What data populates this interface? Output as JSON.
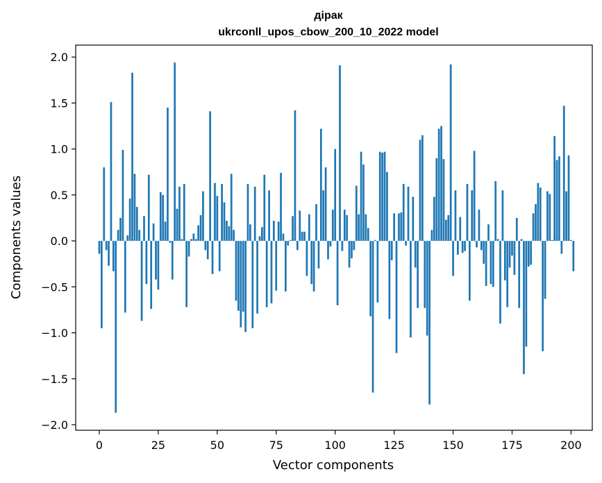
{
  "chart_data": {
    "type": "bar",
    "title_line1": "дірак",
    "title_line2": "ukrconll_upos_cbow_200_10_2022 model",
    "xlabel": "Vector components",
    "ylabel": "Components values",
    "xlim": [
      -10,
      209
    ],
    "ylim": [
      -2.06,
      2.13
    ],
    "xticks": [
      0,
      25,
      50,
      75,
      100,
      125,
      150,
      175,
      200
    ],
    "yticks": [
      -2.0,
      -1.5,
      -1.0,
      -0.5,
      0.0,
      0.5,
      1.0,
      1.5,
      2.0
    ],
    "ytick_labels": [
      "−2.0",
      "−1.5",
      "−1.0",
      "−0.5",
      "0.0",
      "0.5",
      "1.0",
      "1.5",
      "2.0"
    ],
    "color": "#1f77b4",
    "grid": false,
    "values": [
      -0.14,
      -0.95,
      0.8,
      -0.1,
      -0.27,
      1.51,
      -0.33,
      -1.87,
      0.12,
      0.25,
      0.99,
      -0.78,
      0.06,
      0.46,
      1.83,
      0.73,
      0.37,
      0.12,
      -0.87,
      0.27,
      -0.47,
      0.72,
      -0.74,
      0.19,
      -0.42,
      -0.53,
      0.53,
      0.5,
      0.21,
      1.45,
      -0.02,
      -0.42,
      1.94,
      0.35,
      0.59,
      0.02,
      0.62,
      -0.72,
      -0.17,
      0.02,
      0.08,
      0.02,
      0.17,
      0.28,
      0.54,
      -0.1,
      -0.2,
      1.41,
      -0.36,
      0.63,
      0.49,
      -0.33,
      0.62,
      0.42,
      0.22,
      0.16,
      0.73,
      0.12,
      -0.65,
      -0.76,
      -0.94,
      -0.77,
      -0.99,
      0.62,
      0.18,
      -0.95,
      0.59,
      -0.79,
      0.05,
      0.15,
      0.72,
      -0.72,
      0.55,
      -0.68,
      0.22,
      -0.54,
      0.21,
      0.74,
      0.08,
      -0.55,
      -0.05,
      0.01,
      0.27,
      1.42,
      -0.1,
      0.33,
      0.1,
      0.1,
      -0.38,
      0.29,
      -0.47,
      -0.55,
      0.4,
      -0.3,
      1.22,
      0.55,
      0.8,
      -0.2,
      -0.06,
      0.34,
      1.0,
      -0.7,
      1.91,
      -0.11,
      0.34,
      0.28,
      -0.29,
      -0.19,
      -0.1,
      0.6,
      0.29,
      0.97,
      0.83,
      0.29,
      0.14,
      -0.82,
      -1.65,
      0.01,
      -0.67,
      0.97,
      0.96,
      0.97,
      0.75,
      -0.85,
      -0.21,
      0.3,
      -1.22,
      0.3,
      0.31,
      0.62,
      -0.05,
      0.59,
      -1.05,
      0.48,
      -0.29,
      -0.73,
      1.1,
      1.15,
      -0.73,
      -1.03,
      -1.78,
      0.12,
      0.48,
      0.9,
      1.22,
      1.25,
      0.89,
      0.23,
      0.28,
      1.92,
      -0.38,
      0.55,
      -0.15,
      0.26,
      -0.13,
      -0.11,
      0.62,
      -0.65,
      0.55,
      0.98,
      -0.07,
      0.34,
      -0.1,
      -0.25,
      -0.49,
      0.18,
      -0.47,
      -0.5,
      0.65,
      0.02,
      -0.9,
      0.55,
      -0.43,
      -0.72,
      -0.29,
      -0.16,
      -0.37,
      0.25,
      -0.73,
      0.02,
      -1.45,
      -1.15,
      -0.28,
      -0.26,
      0.3,
      0.4,
      0.63,
      0.58,
      -1.2,
      -0.63,
      0.54,
      0.51,
      0.01,
      1.14,
      0.88,
      0.92,
      -0.14,
      1.47,
      0.54,
      0.93,
      0.01,
      -0.33
    ]
  }
}
